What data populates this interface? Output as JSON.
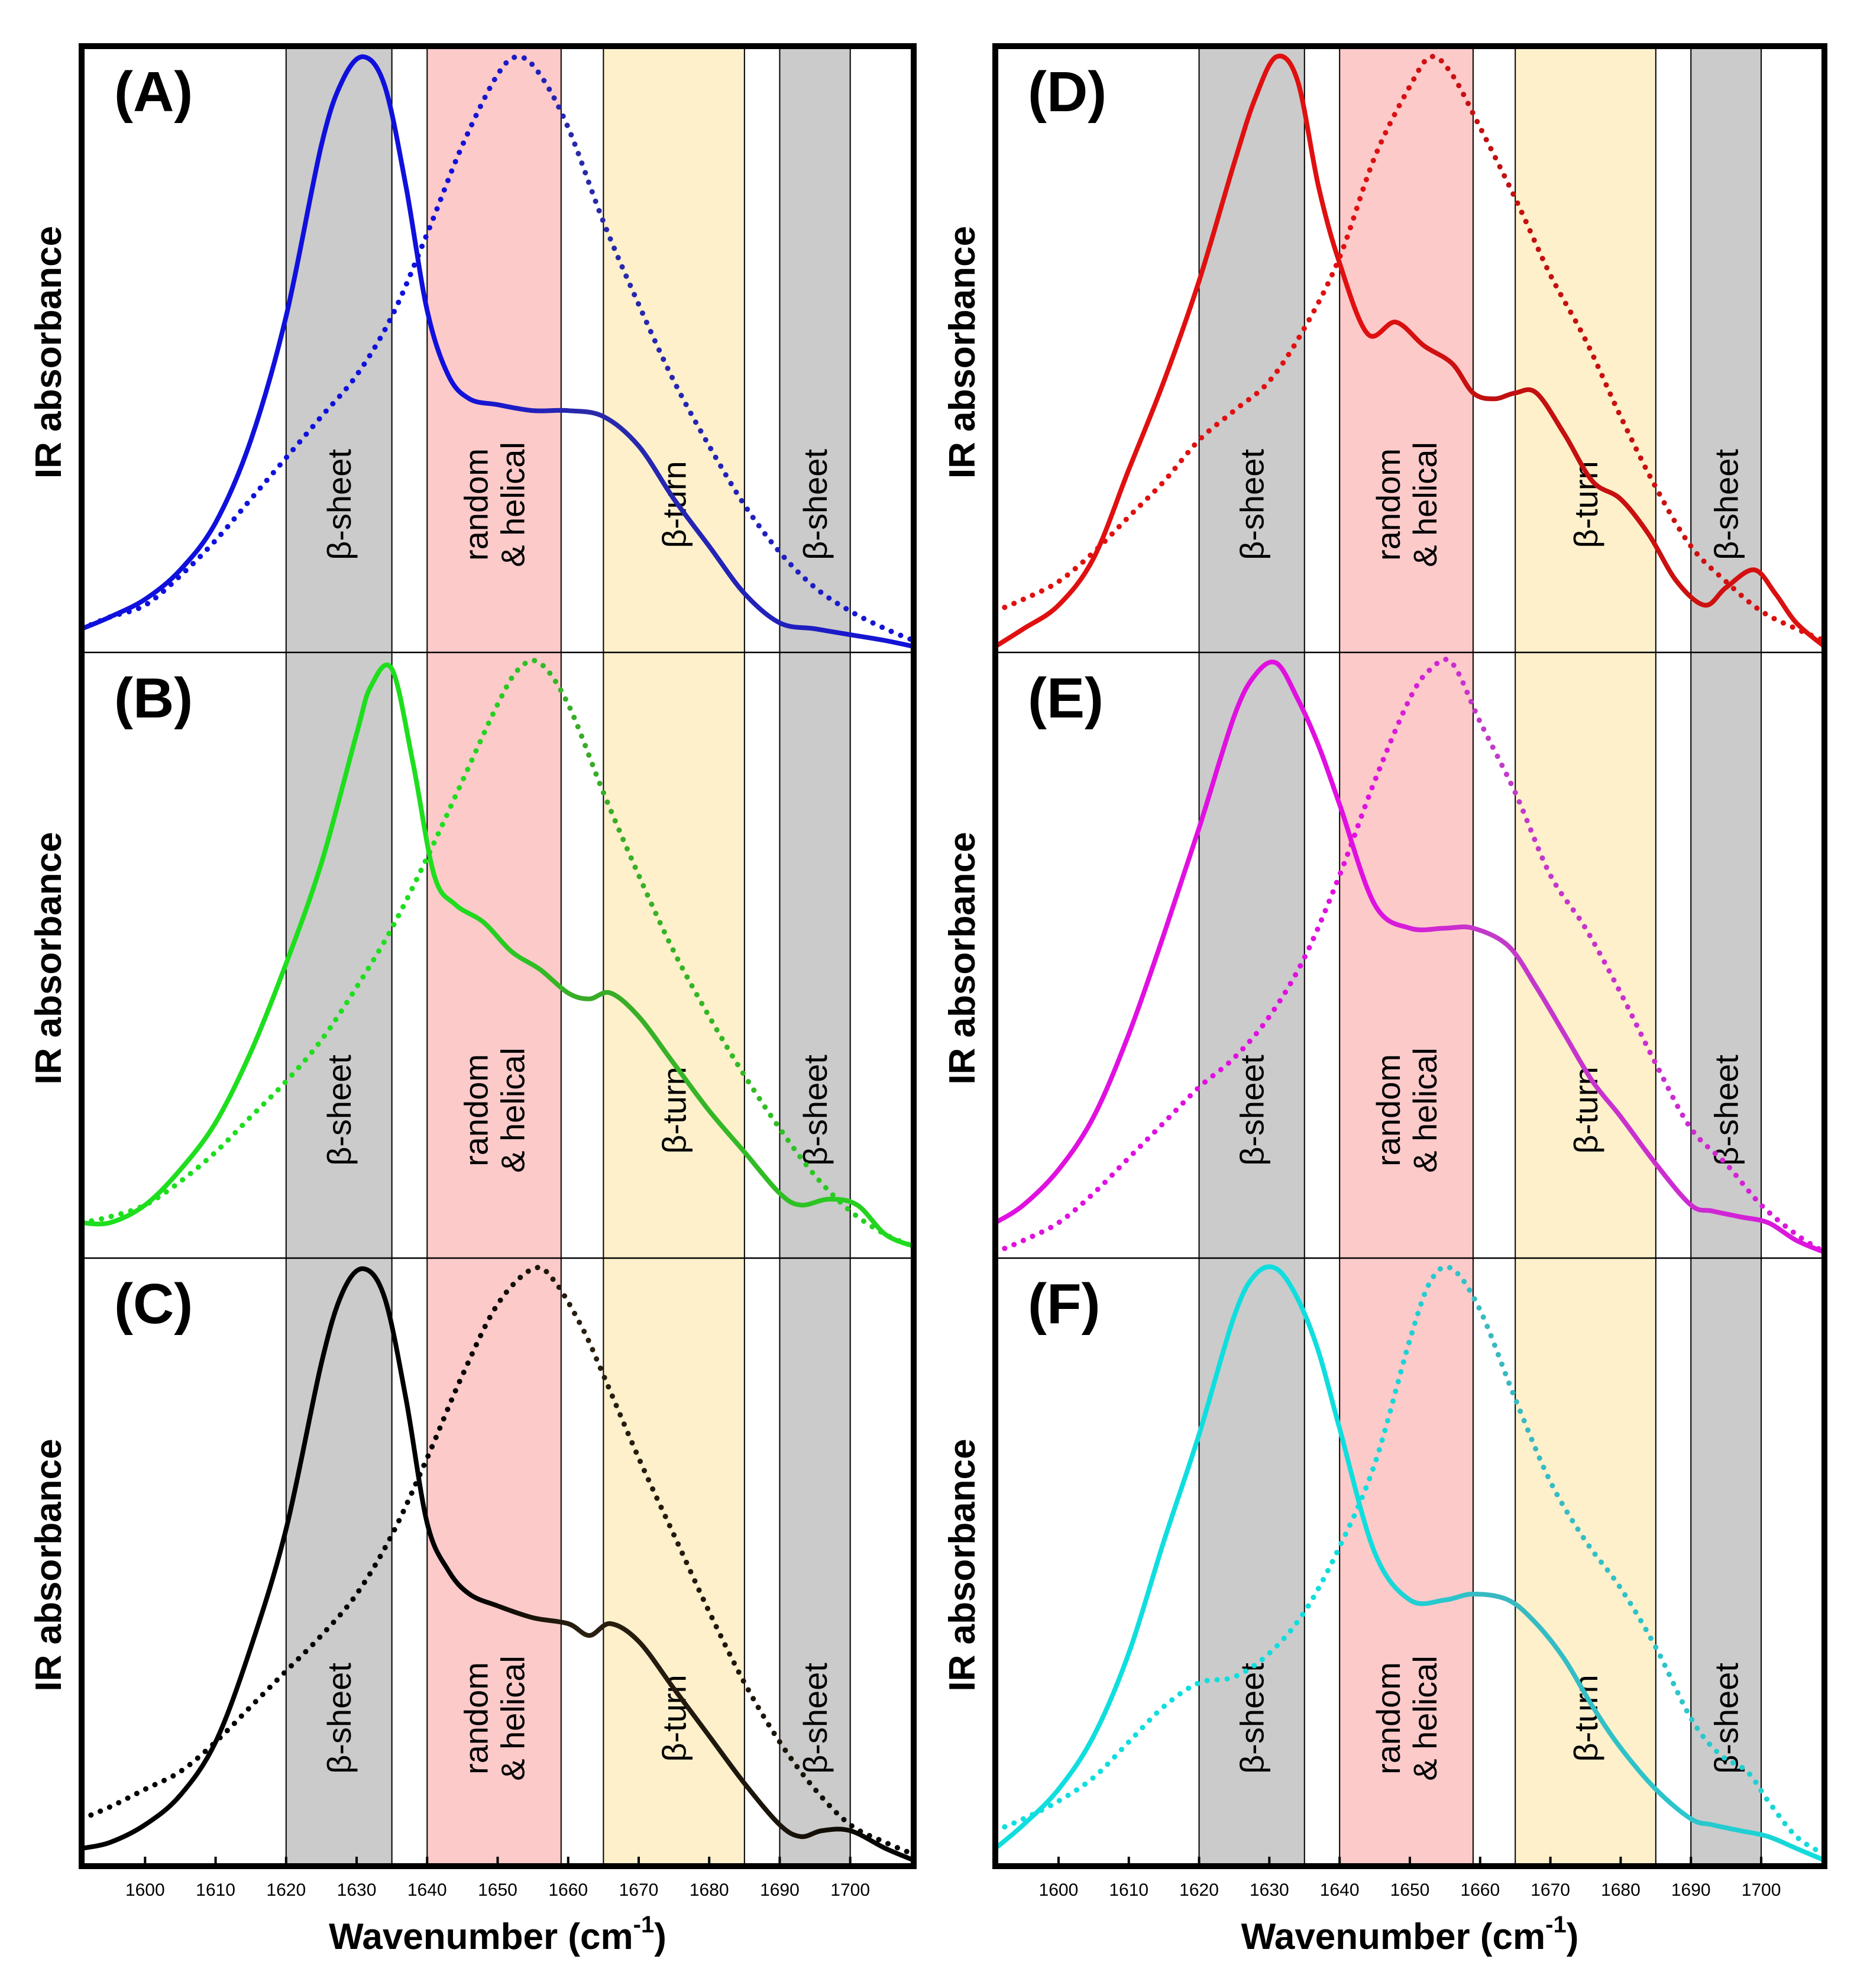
{
  "chart_data": {
    "type": "line",
    "shared": {
      "xlabel": "Wavenumber (cm",
      "xlabel_sup": "-1",
      "xlabel_close": ")",
      "ylabel": "IR absorbance",
      "xlim": [
        1591,
        1709
      ],
      "ylim": [
        0,
        1
      ],
      "xticks": [
        1600,
        1610,
        1620,
        1630,
        1640,
        1650,
        1660,
        1670,
        1680,
        1690,
        1700
      ],
      "grid": false,
      "legend": "none",
      "band_colors": {
        "gray": "#cbcbcb",
        "pink": "#fdcaca",
        "yellow": "#fdf0cb"
      },
      "bands": [
        {
          "from": 1620,
          "to": 1635,
          "color": "gray",
          "label": "β-sheet"
        },
        {
          "from": 1640,
          "to": 1659,
          "color": "pink",
          "label": "random\n& helical"
        },
        {
          "from": 1665,
          "to": 1685,
          "color": "yellow",
          "label": "β-turn"
        },
        {
          "from": 1690,
          "to": 1700,
          "color": "gray",
          "label": "β-sheet"
        }
      ]
    },
    "panels": [
      {
        "label": "(A)",
        "column": 0,
        "row": 0,
        "color": "#1010dd",
        "color2": "#2a2aa8",
        "series": [
          {
            "style": "solid",
            "x": [
              1591,
              1595,
              1600,
              1605,
              1610,
              1615,
              1620,
              1625,
              1628,
              1631,
              1634,
              1637,
              1640,
              1643,
              1646,
              1650,
              1655,
              1660,
              1665,
              1670,
              1675,
              1680,
              1685,
              1690,
              1695,
              1700,
              1705,
              1709
            ],
            "y": [
              0.03,
              0.05,
              0.08,
              0.13,
              0.21,
              0.35,
              0.56,
              0.85,
              0.96,
              1.0,
              0.95,
              0.78,
              0.57,
              0.46,
              0.42,
              0.41,
              0.4,
              0.4,
              0.39,
              0.34,
              0.25,
              0.17,
              0.09,
              0.04,
              0.03,
              0.02,
              0.01,
              0.0
            ]
          },
          {
            "style": "dotted",
            "x": [
              1591,
              1595,
              1600,
              1605,
              1610,
              1615,
              1620,
              1625,
              1630,
              1635,
              1640,
              1645,
              1650,
              1653,
              1656,
              1660,
              1665,
              1670,
              1675,
              1680,
              1685,
              1690,
              1695,
              1700,
              1705,
              1709
            ],
            "y": [
              0.03,
              0.05,
              0.07,
              0.12,
              0.18,
              0.25,
              0.32,
              0.39,
              0.46,
              0.56,
              0.7,
              0.85,
              0.97,
              1.0,
              0.97,
              0.88,
              0.72,
              0.58,
              0.45,
              0.34,
              0.24,
              0.16,
              0.1,
              0.06,
              0.03,
              0.01
            ]
          }
        ]
      },
      {
        "label": "(B)",
        "column": 0,
        "row": 1,
        "color": "#1ede1e",
        "color2": "#3aaa28",
        "series": [
          {
            "style": "solid",
            "x": [
              1591,
              1595,
              1600,
              1605,
              1610,
              1615,
              1620,
              1625,
              1630,
              1632,
              1635,
              1638,
              1641,
              1644,
              1648,
              1652,
              1656,
              1660,
              1663,
              1666,
              1670,
              1675,
              1680,
              1685,
              1690,
              1693,
              1697,
              1701,
              1705,
              1709
            ],
            "y": [
              0.05,
              0.05,
              0.08,
              0.14,
              0.22,
              0.34,
              0.49,
              0.66,
              0.88,
              0.96,
              0.99,
              0.83,
              0.64,
              0.59,
              0.56,
              0.51,
              0.48,
              0.44,
              0.43,
              0.44,
              0.4,
              0.32,
              0.24,
              0.17,
              0.1,
              0.08,
              0.09,
              0.08,
              0.03,
              0.01
            ]
          },
          {
            "style": "dotted",
            "x": [
              1591,
              1595,
              1600,
              1605,
              1610,
              1615,
              1620,
              1625,
              1630,
              1635,
              1640,
              1645,
              1650,
              1653,
              1656,
              1660,
              1665,
              1670,
              1675,
              1680,
              1685,
              1690,
              1695,
              1700,
              1705,
              1709
            ],
            "y": [
              0.05,
              0.06,
              0.08,
              0.12,
              0.17,
              0.23,
              0.29,
              0.36,
              0.45,
              0.55,
              0.67,
              0.8,
              0.93,
              0.99,
              1.0,
              0.93,
              0.78,
              0.64,
              0.51,
              0.4,
              0.3,
              0.21,
              0.13,
              0.07,
              0.03,
              0.01
            ]
          }
        ]
      },
      {
        "label": "(C)",
        "column": 0,
        "row": 2,
        "color": "#000000",
        "color2": "#2a2010",
        "series": [
          {
            "style": "solid",
            "x": [
              1591,
              1595,
              1600,
              1605,
              1610,
              1615,
              1620,
              1625,
              1628,
              1631,
              1634,
              1637,
              1640,
              1643,
              1646,
              1650,
              1655,
              1660,
              1663,
              1666,
              1670,
              1675,
              1680,
              1685,
              1690,
              1693,
              1696,
              1700,
              1705,
              1709
            ],
            "y": [
              0.02,
              0.03,
              0.06,
              0.11,
              0.2,
              0.36,
              0.56,
              0.84,
              0.96,
              1.0,
              0.95,
              0.78,
              0.57,
              0.49,
              0.45,
              0.43,
              0.41,
              0.4,
              0.38,
              0.4,
              0.37,
              0.29,
              0.21,
              0.13,
              0.06,
              0.04,
              0.05,
              0.05,
              0.02,
              0.0
            ]
          },
          {
            "style": "dotted",
            "x": [
              1591,
              1595,
              1600,
              1605,
              1610,
              1615,
              1620,
              1625,
              1630,
              1635,
              1640,
              1645,
              1650,
              1655,
              1658,
              1662,
              1665,
              1670,
              1675,
              1680,
              1685,
              1690,
              1695,
              1700,
              1705,
              1709
            ],
            "y": [
              0.07,
              0.09,
              0.12,
              0.15,
              0.2,
              0.26,
              0.32,
              0.38,
              0.45,
              0.55,
              0.68,
              0.82,
              0.94,
              1.0,
              0.98,
              0.9,
              0.82,
              0.68,
              0.55,
              0.42,
              0.3,
              0.2,
              0.12,
              0.06,
              0.03,
              0.01
            ]
          }
        ]
      },
      {
        "label": "(D)",
        "column": 1,
        "row": 0,
        "color": "#e01010",
        "color2": "#c01010",
        "series": [
          {
            "style": "solid",
            "x": [
              1591,
              1595,
              1600,
              1605,
              1610,
              1615,
              1620,
              1625,
              1628,
              1631,
              1634,
              1637,
              1640,
              1644,
              1648,
              1652,
              1656,
              1659,
              1662,
              1665,
              1668,
              1672,
              1676,
              1680,
              1684,
              1688,
              1692,
              1695,
              1699,
              1702,
              1705,
              1709
            ],
            "y": [
              0.0,
              0.03,
              0.07,
              0.15,
              0.3,
              0.45,
              0.62,
              0.82,
              0.93,
              1.0,
              0.96,
              0.78,
              0.65,
              0.53,
              0.55,
              0.51,
              0.48,
              0.43,
              0.42,
              0.43,
              0.43,
              0.36,
              0.28,
              0.25,
              0.19,
              0.11,
              0.07,
              0.1,
              0.13,
              0.09,
              0.04,
              0.0
            ]
          },
          {
            "style": "dotted",
            "x": [
              1591,
              1595,
              1600,
              1605,
              1610,
              1615,
              1620,
              1625,
              1630,
              1635,
              1640,
              1645,
              1650,
              1653,
              1656,
              1660,
              1665,
              1670,
              1675,
              1680,
              1685,
              1690,
              1695,
              1700,
              1705,
              1709
            ],
            "y": [
              0.06,
              0.08,
              0.11,
              0.16,
              0.22,
              0.28,
              0.35,
              0.4,
              0.45,
              0.54,
              0.66,
              0.83,
              0.95,
              1.0,
              0.97,
              0.88,
              0.76,
              0.63,
              0.52,
              0.39,
              0.27,
              0.17,
              0.11,
              0.06,
              0.03,
              0.01
            ]
          }
        ]
      },
      {
        "label": "(E)",
        "column": 1,
        "row": 1,
        "color": "#e010e0",
        "color2": "#c03cc8",
        "series": [
          {
            "style": "solid",
            "x": [
              1591,
              1595,
              1600,
              1605,
              1610,
              1615,
              1620,
              1625,
              1628,
              1631,
              1634,
              1637,
              1640,
              1645,
              1650,
              1655,
              1659,
              1664,
              1668,
              1672,
              1676,
              1680,
              1685,
              1690,
              1693,
              1697,
              1701,
              1705,
              1709
            ],
            "y": [
              0.05,
              0.08,
              0.14,
              0.23,
              0.37,
              0.54,
              0.72,
              0.91,
              0.98,
              1.0,
              0.94,
              0.86,
              0.76,
              0.59,
              0.55,
              0.55,
              0.55,
              0.52,
              0.45,
              0.37,
              0.29,
              0.23,
              0.15,
              0.08,
              0.07,
              0.06,
              0.05,
              0.02,
              0.0
            ]
          },
          {
            "style": "dotted",
            "x": [
              1591,
              1595,
              1600,
              1605,
              1610,
              1615,
              1620,
              1625,
              1630,
              1635,
              1640,
              1645,
              1650,
              1653,
              1656,
              1660,
              1665,
              1670,
              1675,
              1680,
              1685,
              1690,
              1695,
              1700,
              1705,
              1709
            ],
            "y": [
              0.0,
              0.02,
              0.05,
              0.1,
              0.16,
              0.22,
              0.28,
              0.33,
              0.4,
              0.5,
              0.64,
              0.8,
              0.94,
              0.99,
              1.0,
              0.9,
              0.78,
              0.64,
              0.55,
              0.44,
              0.32,
              0.21,
              0.15,
              0.08,
              0.03,
              0.0
            ]
          }
        ]
      },
      {
        "label": "(F)",
        "column": 1,
        "row": 2,
        "color": "#10dede",
        "color2": "#3ab8c0",
        "series": [
          {
            "style": "solid",
            "x": [
              1591,
              1595,
              1600,
              1605,
              1610,
              1615,
              1620,
              1625,
              1628,
              1631,
              1634,
              1637,
              1640,
              1645,
              1650,
              1655,
              1659,
              1664,
              1668,
              1672,
              1676,
              1680,
              1685,
              1690,
              1693,
              1697,
              1701,
              1705,
              1709
            ],
            "y": [
              0.02,
              0.06,
              0.12,
              0.21,
              0.35,
              0.54,
              0.72,
              0.92,
              0.99,
              1.0,
              0.95,
              0.86,
              0.73,
              0.52,
              0.44,
              0.44,
              0.45,
              0.44,
              0.4,
              0.34,
              0.26,
              0.19,
              0.12,
              0.07,
              0.06,
              0.05,
              0.04,
              0.02,
              0.0
            ]
          },
          {
            "style": "dotted",
            "x": [
              1591,
              1595,
              1600,
              1605,
              1610,
              1615,
              1620,
              1625,
              1630,
              1635,
              1640,
              1645,
              1650,
              1653,
              1656,
              1660,
              1665,
              1670,
              1675,
              1680,
              1685,
              1690,
              1694,
              1698,
              1701,
              1705,
              1709
            ],
            "y": [
              0.05,
              0.07,
              0.1,
              0.14,
              0.2,
              0.26,
              0.3,
              0.31,
              0.35,
              0.42,
              0.53,
              0.67,
              0.88,
              0.98,
              1.0,
              0.93,
              0.78,
              0.64,
              0.54,
              0.46,
              0.36,
              0.24,
              0.18,
              0.15,
              0.1,
              0.04,
              0.01
            ]
          }
        ]
      }
    ]
  }
}
